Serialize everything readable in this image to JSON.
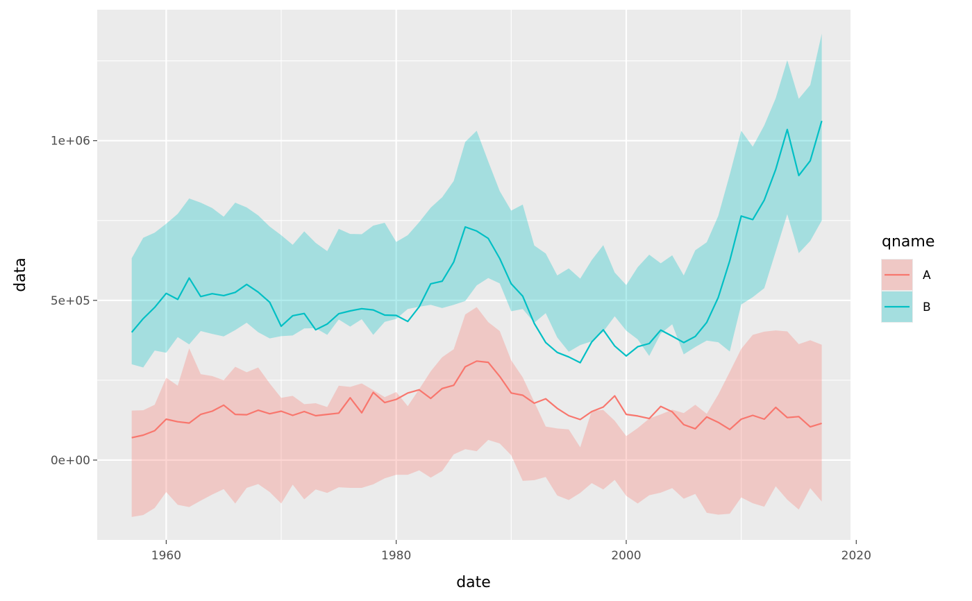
{
  "chart_data": {
    "type": "line",
    "xlabel": "date",
    "ylabel": "data",
    "xlim": [
      1954,
      2019.5
    ],
    "ylim": [
      -250000,
      1410000
    ],
    "x_ticks": [
      {
        "value": 1960,
        "label": "1960"
      },
      {
        "value": 1980,
        "label": "1980"
      },
      {
        "value": 2000,
        "label": "2000"
      },
      {
        "value": 2020,
        "label": "2020"
      }
    ],
    "x_minor": [
      1970,
      1990,
      2010
    ],
    "y_ticks": [
      {
        "value": 0,
        "label": "0e+00"
      },
      {
        "value": 500000,
        "label": "5e+05"
      },
      {
        "value": 1000000,
        "label": "1e+06"
      }
    ],
    "y_minor": [
      250000,
      750000,
      1250000
    ],
    "grid": true,
    "legend": {
      "title": "qname",
      "position": "right"
    },
    "panel_color": "#ebebeb",
    "series": [
      {
        "name": "A",
        "color": "#f8766d",
        "x": [
          1957,
          1958,
          1959,
          1960,
          1961,
          1962,
          1963,
          1964,
          1965,
          1966,
          1967,
          1968,
          1969,
          1970,
          1971,
          1972,
          1973,
          1974,
          1975,
          1976,
          1977,
          1978,
          1979,
          1980,
          1981,
          1982,
          1983,
          1984,
          1985,
          1986,
          1987,
          1988,
          1989,
          1990,
          1991,
          1992,
          1993,
          1994,
          1995,
          1996,
          1997,
          1998,
          1999,
          2000,
          2001,
          2002,
          2003,
          2004,
          2005,
          2006,
          2007,
          2008,
          2009,
          2010,
          2011,
          2012,
          2013,
          2014,
          2015,
          2016,
          2017
        ],
        "y": [
          70000,
          78000,
          92000,
          128000,
          120000,
          116000,
          143000,
          153000,
          172000,
          143000,
          142000,
          156000,
          145000,
          153000,
          140000,
          152000,
          139000,
          143000,
          147000,
          195000,
          148000,
          212000,
          180000,
          190000,
          210000,
          220000,
          193000,
          224000,
          234000,
          292000,
          310000,
          306000,
          262000,
          210000,
          203000,
          178000,
          192000,
          162000,
          139000,
          127000,
          152000,
          166000,
          201000,
          143000,
          138000,
          130000,
          168000,
          151000,
          111000,
          98000,
          135000,
          118000,
          96000,
          128000,
          140000,
          128000,
          165000,
          133000,
          136000,
          104000,
          115000
        ],
        "lower": [
          -178000,
          -172000,
          -150000,
          -100000,
          -140000,
          -147000,
          -127000,
          -108000,
          -91000,
          -136000,
          -87000,
          -75000,
          -100000,
          -136000,
          -77000,
          -123000,
          -92000,
          -103000,
          -85000,
          -87000,
          -87000,
          -76000,
          -57000,
          -46000,
          -46000,
          -32000,
          -55000,
          -34000,
          18000,
          34000,
          28000,
          63000,
          52000,
          15000,
          -65000,
          -63000,
          -53000,
          -111000,
          -125000,
          -103000,
          -72000,
          -92000,
          -62000,
          -112000,
          -136000,
          -110000,
          -102000,
          -88000,
          -121000,
          -106000,
          -165000,
          -171000,
          -168000,
          -117000,
          -135000,
          -146000,
          -82000,
          -124000,
          -155000,
          -88000,
          -130000
        ],
        "upper": [
          155000,
          156000,
          173000,
          258000,
          233000,
          350000,
          269000,
          263000,
          250000,
          292000,
          275000,
          290000,
          240000,
          195000,
          201000,
          175000,
          178000,
          166000,
          233000,
          229000,
          240000,
          219000,
          197000,
          213000,
          169000,
          222000,
          278000,
          322000,
          347000,
          456000,
          479000,
          432000,
          404000,
          312000,
          259000,
          182000,
          105000,
          99000,
          96000,
          40000,
          154000,
          157000,
          123000,
          75000,
          100000,
          130000,
          143000,
          158000,
          147000,
          173000,
          145000,
          205000,
          276000,
          348000,
          392000,
          402000,
          406000,
          403000,
          363000,
          375000,
          361000
        ]
      },
      {
        "name": "B",
        "color": "#00bfc4",
        "x": [
          1957,
          1958,
          1959,
          1960,
          1961,
          1962,
          1963,
          1964,
          1965,
          1966,
          1967,
          1968,
          1969,
          1970,
          1971,
          1972,
          1973,
          1974,
          1975,
          1976,
          1977,
          1978,
          1979,
          1980,
          1981,
          1982,
          1983,
          1984,
          1985,
          1986,
          1987,
          1988,
          1989,
          1990,
          1991,
          1992,
          1993,
          1994,
          1995,
          1996,
          1997,
          1998,
          1999,
          2000,
          2001,
          2002,
          2003,
          2004,
          2005,
          2006,
          2007,
          2008,
          2009,
          2010,
          2011,
          2012,
          2013,
          2014,
          2015,
          2016,
          2017
        ],
        "y": [
          400000,
          443000,
          478000,
          522000,
          503000,
          570000,
          512000,
          521000,
          515000,
          525000,
          550000,
          526000,
          494000,
          419000,
          452000,
          459000,
          408000,
          426000,
          458000,
          467000,
          474000,
          470000,
          454000,
          453000,
          434000,
          480000,
          552000,
          560000,
          620000,
          730000,
          717000,
          694000,
          631000,
          552000,
          513000,
          428000,
          368000,
          337000,
          323000,
          305000,
          370000,
          408000,
          357000,
          326000,
          355000,
          365000,
          407000,
          388000,
          368000,
          387000,
          431000,
          509000,
          624000,
          764000,
          753000,
          814000,
          910000,
          1035000,
          891000,
          937000,
          1062000
        ],
        "lower": [
          300000,
          290000,
          343000,
          336000,
          385000,
          362000,
          404000,
          395000,
          387000,
          407000,
          430000,
          400000,
          381000,
          388000,
          390000,
          412000,
          413000,
          392000,
          440000,
          418000,
          441000,
          392000,
          433000,
          442000,
          473000,
          480000,
          486000,
          476000,
          486000,
          498000,
          547000,
          570000,
          553000,
          466000,
          473000,
          430000,
          460000,
          384000,
          339000,
          360000,
          372000,
          402000,
          450000,
          405000,
          378000,
          326000,
          396000,
          425000,
          331000,
          354000,
          374000,
          369000,
          340000,
          487000,
          510000,
          538000,
          653000,
          770000,
          648000,
          686000,
          750000
        ],
        "upper": [
          632000,
          696000,
          712000,
          740000,
          771000,
          819000,
          806000,
          789000,
          762000,
          806000,
          791000,
          766000,
          731000,
          704000,
          674000,
          716000,
          680000,
          654000,
          724000,
          708000,
          707000,
          734000,
          743000,
          683000,
          704000,
          745000,
          790000,
          823000,
          874000,
          996000,
          1031000,
          935000,
          842000,
          781000,
          800000,
          672000,
          647000,
          578000,
          600000,
          568000,
          626000,
          673000,
          587000,
          548000,
          604000,
          643000,
          616000,
          641000,
          578000,
          657000,
          682000,
          764000,
          894000,
          1031000,
          981000,
          1048000,
          1133000,
          1252000,
          1131000,
          1174000,
          1335000
        ]
      }
    ]
  }
}
